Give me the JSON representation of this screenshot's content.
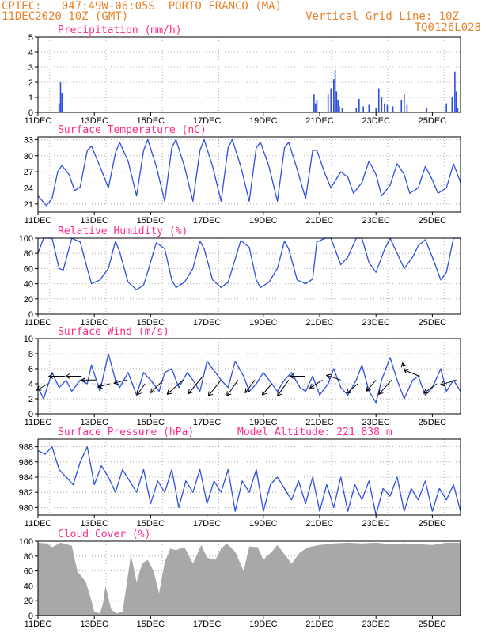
{
  "header": {
    "line1": "CPTEC:   047:49W-06:05S  PORTO FRANCO (MA)",
    "line2": "11DEC2020 10Z (GMT)",
    "grid_note": "Vertical Grid Line: 10Z",
    "code": "TQ0126L028"
  },
  "x_ticks": [
    "11DEC",
    "13DEC",
    "15DEC",
    "17DEC",
    "19DEC",
    "21DEC",
    "23DEC",
    "25DEC"
  ],
  "x_axis_days": [
    11,
    26
  ],
  "colors": {
    "header": "#e8822a",
    "title": "#ff2b8a",
    "series": "#2f4fe0",
    "cloud": "#a8a8a8"
  },
  "chart_data": [
    {
      "type": "bar",
      "title": "Precipitation (mm/h)",
      "ylim": [
        0,
        5
      ],
      "yticks": [
        "0",
        "1",
        "2",
        "3",
        "4",
        "5"
      ],
      "x_unit": "day of December 2020",
      "x": [
        11.75,
        11.8,
        11.85,
        20.8,
        20.85,
        20.9,
        21.3,
        21.4,
        21.5,
        21.55,
        21.6,
        21.65,
        21.7,
        21.8,
        22.3,
        22.4,
        22.55,
        22.75,
        23.0,
        23.1,
        23.2,
        23.3,
        23.4,
        23.6,
        23.9,
        24.0,
        24.1,
        24.8,
        25.5,
        25.7,
        25.8,
        25.85,
        25.9
      ],
      "values": [
        0.6,
        2.0,
        1.3,
        1.2,
        0.6,
        0.8,
        1.2,
        1.6,
        2.2,
        2.8,
        1.4,
        0.8,
        0.4,
        0.3,
        0.3,
        0.9,
        0.4,
        0.5,
        0.3,
        1.6,
        1.0,
        0.6,
        0.5,
        0.4,
        0.8,
        1.2,
        0.5,
        0.3,
        0.6,
        1.0,
        2.7,
        1.4,
        0.3
      ]
    },
    {
      "type": "line",
      "title": "Surface Temperature (nC)",
      "ylim": [
        19.5,
        33.5
      ],
      "yticks": [
        "21",
        "24",
        "27",
        "30",
        "33"
      ],
      "x": [
        11.0,
        11.3,
        11.5,
        11.7,
        11.85,
        12.1,
        12.3,
        12.5,
        12.75,
        12.9,
        13.2,
        13.5,
        13.75,
        13.9,
        14.2,
        14.5,
        14.75,
        14.9,
        15.2,
        15.5,
        15.75,
        15.9,
        16.2,
        16.5,
        16.75,
        16.9,
        17.2,
        17.5,
        17.75,
        17.9,
        18.2,
        18.5,
        18.75,
        18.9,
        19.2,
        19.5,
        19.75,
        19.9,
        20.2,
        20.5,
        20.75,
        20.9,
        21.2,
        21.4,
        21.75,
        22.0,
        22.2,
        22.5,
        22.75,
        23.0,
        23.2,
        23.5,
        23.75,
        24.0,
        24.2,
        24.5,
        24.75,
        25.0,
        25.2,
        25.5,
        25.75,
        26.0
      ],
      "values": [
        22.5,
        20.7,
        22.0,
        27.0,
        28.2,
        26.5,
        23.5,
        24.2,
        31.0,
        31.8,
        28.0,
        24.0,
        30.5,
        32.5,
        29.0,
        22.5,
        31.0,
        33.0,
        28.0,
        21.5,
        31.5,
        33.0,
        28.0,
        21.5,
        31.0,
        33.0,
        28.0,
        21.5,
        31.5,
        33.0,
        28.0,
        21.5,
        31.5,
        32.5,
        28.0,
        21.5,
        31.5,
        32.5,
        27.5,
        22.0,
        31.0,
        31.0,
        26.5,
        24.0,
        27.0,
        26.0,
        23.0,
        25.0,
        29.0,
        26.5,
        22.5,
        24.5,
        28.5,
        26.5,
        23.0,
        24.0,
        28.0,
        25.5,
        23.0,
        24.0,
        28.5,
        25.0
      ]
    },
    {
      "type": "line",
      "title": "Relative Humidity (%)",
      "ylim": [
        0,
        100
      ],
      "yticks": [
        "0",
        "20",
        "40",
        "60",
        "80",
        "100"
      ],
      "x": [
        11.0,
        11.2,
        11.5,
        11.75,
        11.9,
        12.2,
        12.5,
        12.75,
        12.9,
        13.2,
        13.5,
        13.75,
        13.9,
        14.2,
        14.5,
        14.75,
        14.9,
        15.2,
        15.5,
        15.75,
        15.9,
        16.2,
        16.5,
        16.75,
        16.9,
        17.2,
        17.5,
        17.75,
        17.9,
        18.2,
        18.5,
        18.75,
        18.9,
        19.2,
        19.5,
        19.75,
        19.9,
        20.2,
        20.5,
        20.75,
        20.9,
        21.2,
        21.4,
        21.75,
        22.0,
        22.3,
        22.5,
        22.75,
        23.0,
        23.3,
        23.5,
        23.75,
        24.0,
        24.3,
        24.5,
        24.75,
        25.0,
        25.3,
        25.5,
        25.75,
        26.0
      ],
      "values": [
        80,
        100,
        100,
        60,
        58,
        100,
        95,
        60,
        40,
        45,
        60,
        96,
        82,
        42,
        32,
        38,
        56,
        94,
        86,
        45,
        35,
        42,
        60,
        96,
        86,
        45,
        35,
        42,
        60,
        97,
        88,
        45,
        35,
        42,
        60,
        96,
        86,
        45,
        40,
        46,
        95,
        100,
        100,
        65,
        75,
        100,
        100,
        68,
        55,
        85,
        100,
        80,
        60,
        75,
        90,
        98,
        75,
        45,
        55,
        100,
        100
      ]
    },
    {
      "type": "line",
      "title": "Surface Wind (m/s)",
      "ylim": [
        0,
        10
      ],
      "yticks": [
        "0",
        "2",
        "4",
        "6",
        "8",
        "10"
      ],
      "x": [
        11.0,
        11.2,
        11.5,
        11.75,
        12.0,
        12.2,
        12.5,
        12.75,
        12.9,
        13.2,
        13.5,
        13.75,
        13.9,
        14.2,
        14.5,
        14.75,
        15.0,
        15.3,
        15.5,
        15.75,
        16.0,
        16.3,
        16.5,
        16.75,
        17.0,
        17.3,
        17.5,
        17.75,
        18.0,
        18.3,
        18.5,
        18.75,
        19.0,
        19.3,
        19.5,
        19.75,
        20.0,
        20.3,
        20.5,
        20.75,
        21.0,
        21.3,
        21.5,
        21.75,
        22.0,
        22.3,
        22.5,
        22.75,
        23.0,
        23.2,
        23.5,
        23.75,
        24.0,
        24.3,
        24.5,
        24.75,
        25.0,
        25.3,
        25.5,
        25.75,
        26.0
      ],
      "values": [
        3.5,
        2.0,
        5.5,
        3.5,
        4.5,
        3.0,
        4.5,
        4.0,
        6.5,
        3.0,
        8.0,
        4.5,
        3.5,
        5.5,
        2.5,
        5.5,
        4.5,
        3.0,
        5.5,
        6.0,
        3.5,
        5.5,
        4.5,
        3.0,
        7.0,
        5.5,
        4.5,
        3.5,
        7.0,
        5.0,
        3.0,
        4.0,
        5.5,
        4.0,
        3.0,
        4.5,
        5.5,
        3.5,
        3.0,
        5.0,
        2.5,
        4.0,
        6.0,
        3.5,
        2.5,
        4.5,
        6.5,
        3.0,
        1.5,
        4.5,
        7.5,
        4.5,
        2.0,
        4.5,
        5.0,
        2.5,
        3.5,
        6.0,
        3.0,
        4.5,
        3.0
      ],
      "wind_arrows": [
        {
          "day": 11.35,
          "speed": 4.0,
          "dx": -14,
          "dy": 8
        },
        {
          "day": 11.95,
          "speed": 5.0,
          "dx": -20,
          "dy": 0
        },
        {
          "day": 12.55,
          "speed": 5.0,
          "dx": -20,
          "dy": 0
        },
        {
          "day": 13.05,
          "speed": 4.5,
          "dx": -18,
          "dy": 0
        },
        {
          "day": 13.55,
          "speed": 4.0,
          "dx": -15,
          "dy": 4
        },
        {
          "day": 14.15,
          "speed": 4.5,
          "dx": -16,
          "dy": 4
        },
        {
          "day": 14.8,
          "speed": 4.0,
          "dx": -10,
          "dy": 14
        },
        {
          "day": 15.45,
          "speed": 4.5,
          "dx": -16,
          "dy": 16
        },
        {
          "day": 16.15,
          "speed": 4.5,
          "dx": -20,
          "dy": 18
        },
        {
          "day": 16.85,
          "speed": 5.0,
          "dx": -18,
          "dy": 22
        },
        {
          "day": 17.5,
          "speed": 4.5,
          "dx": -16,
          "dy": 20
        },
        {
          "day": 18.1,
          "speed": 4.5,
          "dx": -14,
          "dy": 20
        },
        {
          "day": 18.7,
          "speed": 4.5,
          "dx": -12,
          "dy": 16
        },
        {
          "day": 19.3,
          "speed": 4.0,
          "dx": -12,
          "dy": 14
        },
        {
          "day": 19.9,
          "speed": 4.5,
          "dx": -14,
          "dy": 20
        },
        {
          "day": 20.5,
          "speed": 5.0,
          "dx": -20,
          "dy": 0
        },
        {
          "day": 21.1,
          "speed": 4.5,
          "dx": -16,
          "dy": 10
        },
        {
          "day": 21.75,
          "speed": 4.5,
          "dx": -18,
          "dy": -6
        },
        {
          "day": 22.35,
          "speed": 4.0,
          "dx": -14,
          "dy": 12
        },
        {
          "day": 23.0,
          "speed": 4.5,
          "dx": -12,
          "dy": 14
        },
        {
          "day": 23.55,
          "speed": 4.5,
          "dx": -16,
          "dy": 18
        },
        {
          "day": 24.05,
          "speed": 5.5,
          "dx": -4,
          "dy": -12
        },
        {
          "day": 24.55,
          "speed": 5.0,
          "dx": -20,
          "dy": -8
        },
        {
          "day": 25.15,
          "speed": 4.0,
          "dx": -16,
          "dy": 12
        },
        {
          "day": 25.85,
          "speed": 4.5,
          "dx": -20,
          "dy": 6
        }
      ]
    },
    {
      "type": "line",
      "title": "Surface Pressure (hPa)",
      "annotation": "Model Altitude: 221.838  m",
      "ylim": [
        979,
        989
      ],
      "yticks": [
        "980",
        "982",
        "984",
        "986",
        "988"
      ],
      "x": [
        11.0,
        11.25,
        11.5,
        11.75,
        12.0,
        12.25,
        12.5,
        12.75,
        13.0,
        13.25,
        13.5,
        13.75,
        14.0,
        14.25,
        14.5,
        14.75,
        15.0,
        15.25,
        15.5,
        15.75,
        16.0,
        16.25,
        16.5,
        16.75,
        17.0,
        17.25,
        17.5,
        17.75,
        18.0,
        18.25,
        18.5,
        18.75,
        19.0,
        19.25,
        19.5,
        19.75,
        20.0,
        20.25,
        20.5,
        20.75,
        21.0,
        21.25,
        21.5,
        21.75,
        22.0,
        22.25,
        22.5,
        22.75,
        23.0,
        23.25,
        23.5,
        23.75,
        24.0,
        24.25,
        24.5,
        24.75,
        25.0,
        25.25,
        25.5,
        25.75,
        26.0
      ],
      "values": [
        987.5,
        987.0,
        988.0,
        985.0,
        984.0,
        983.0,
        986.0,
        988.0,
        983.0,
        985.5,
        984.0,
        982.0,
        985.0,
        983.5,
        982.0,
        985.0,
        980.5,
        983.5,
        982.0,
        985.0,
        980.0,
        983.5,
        982.0,
        985.0,
        980.5,
        983.5,
        982.0,
        985.0,
        979.5,
        983.5,
        982.0,
        985.0,
        979.5,
        983.0,
        984.0,
        982.5,
        981.0,
        983.5,
        980.5,
        984.0,
        979.5,
        983.0,
        980.0,
        984.0,
        979.5,
        983.0,
        981.0,
        983.5,
        979.0,
        982.5,
        981.5,
        984.0,
        979.5,
        982.5,
        981.0,
        983.5,
        979.5,
        982.5,
        981.0,
        983.0,
        979.5
      ]
    },
    {
      "type": "area",
      "title": "Cloud Cover (%)",
      "ylim": [
        0,
        100
      ],
      "yticks": [
        "0",
        "20",
        "40",
        "60",
        "80",
        "100"
      ],
      "x": [
        11.0,
        11.3,
        11.5,
        11.8,
        12.0,
        12.2,
        12.4,
        12.7,
        12.9,
        13.0,
        13.2,
        13.3,
        13.4,
        13.6,
        13.8,
        14.0,
        14.1,
        14.3,
        14.5,
        14.7,
        14.9,
        15.1,
        15.3,
        15.5,
        15.7,
        15.9,
        16.2,
        16.5,
        16.8,
        17.0,
        17.3,
        17.5,
        17.7,
        18.0,
        18.3,
        18.5,
        18.8,
        19.0,
        19.3,
        19.5,
        19.8,
        20.0,
        20.3,
        20.6,
        21.0,
        21.5,
        22.0,
        22.5,
        23.0,
        23.5,
        24.0,
        24.5,
        25.0,
        25.5,
        26.0
      ],
      "values": [
        98,
        97,
        92,
        98,
        96,
        94,
        60,
        45,
        20,
        5,
        3,
        15,
        40,
        8,
        3,
        5,
        30,
        82,
        45,
        70,
        75,
        60,
        30,
        72,
        90,
        88,
        92,
        70,
        95,
        78,
        75,
        90,
        97,
        86,
        60,
        93,
        92,
        75,
        86,
        95,
        80,
        70,
        85,
        92,
        95,
        97,
        98,
        97,
        98,
        96,
        97,
        96,
        95,
        98,
        98
      ]
    }
  ]
}
